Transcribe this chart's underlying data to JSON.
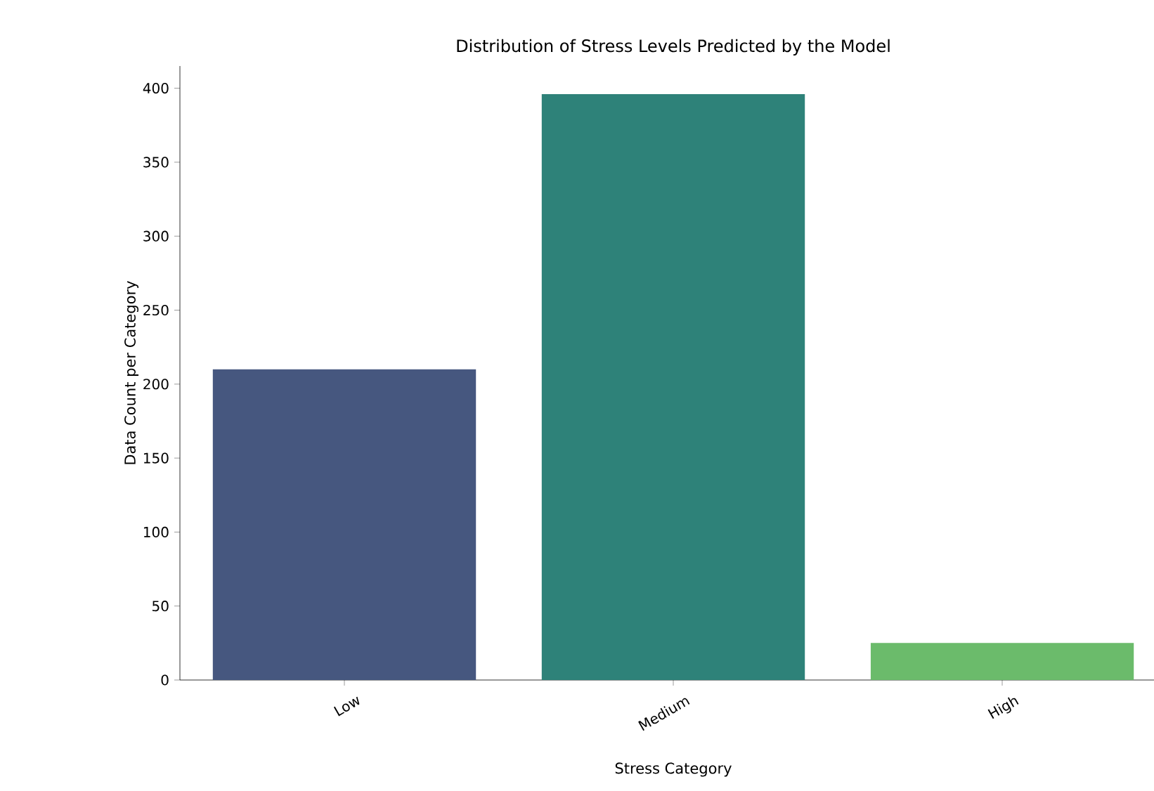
{
  "chart_data": {
    "type": "bar",
    "title": "Distribution of Stress Levels Predicted by the Model",
    "xlabel": "Stress Category",
    "ylabel": "Data Count per Category",
    "categories": [
      "Low",
      "Medium",
      "High"
    ],
    "values": [
      210,
      396,
      25
    ],
    "colors": [
      "#46577f",
      "#2e8279",
      "#6bbb6b"
    ],
    "ylim": [
      0,
      415
    ],
    "yticks": [
      0,
      50,
      100,
      150,
      200,
      250,
      300,
      350,
      400
    ],
    "grid": false
  }
}
